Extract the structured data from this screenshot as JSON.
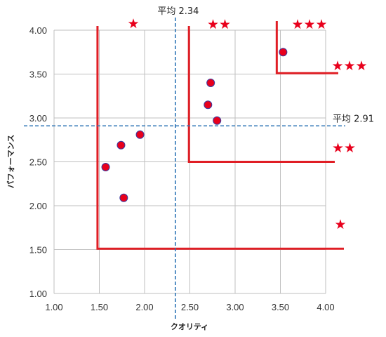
{
  "chart_data": {
    "type": "scatter",
    "xlabel": "クオリティ",
    "ylabel": "パフォーマンス",
    "xlim": [
      1.0,
      4.0
    ],
    "ylim": [
      1.0,
      4.0
    ],
    "x_ticks": [
      "1.00",
      "1.50",
      "2.00",
      "2.50",
      "3.00",
      "3.50",
      "4.00"
    ],
    "y_ticks": [
      "1.00",
      "1.50",
      "2.00",
      "2.50",
      "3.00",
      "3.50",
      "4.00"
    ],
    "grid": true,
    "points": [
      {
        "x": 1.57,
        "y": 2.44
      },
      {
        "x": 1.74,
        "y": 2.69
      },
      {
        "x": 1.77,
        "y": 2.09
      },
      {
        "x": 1.95,
        "y": 2.81
      },
      {
        "x": 2.7,
        "y": 3.15
      },
      {
        "x": 2.73,
        "y": 3.4
      },
      {
        "x": 2.8,
        "y": 2.97
      },
      {
        "x": 3.53,
        "y": 3.75
      }
    ],
    "averages": {
      "x": {
        "value": 2.34,
        "label": "平均 2.34"
      },
      "y": {
        "value": 2.91,
        "label": "平均 2.91"
      }
    },
    "zones": [
      {
        "x_from": 1.48,
        "y_from": 1.51,
        "top_stars": "★",
        "side_stars": "★"
      },
      {
        "x_from": 2.49,
        "y_from": 2.5,
        "top_stars": "★★",
        "side_stars": "★★"
      },
      {
        "x_from": 3.46,
        "y_from": 3.51,
        "top_stars": "★★★",
        "side_stars": "★★★"
      }
    ],
    "colors": {
      "point_fill": "#e8001c",
      "point_stroke": "#3a3aa0",
      "zone_line": "#e01e25",
      "average_line": "#2e75b6",
      "grid": "#bfbfbf",
      "stars": "#e8001c"
    }
  }
}
